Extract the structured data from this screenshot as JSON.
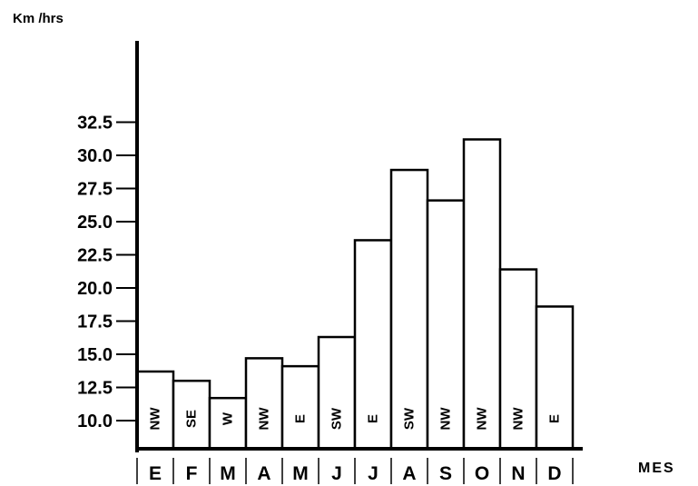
{
  "chart_data": {
    "type": "bar",
    "ylabel": "Km /hrs",
    "xlabel": "MES",
    "categories": [
      "E",
      "F",
      "M",
      "A",
      "M",
      "J",
      "J",
      "A",
      "S",
      "O",
      "N",
      "D"
    ],
    "values": [
      13.7,
      13.0,
      11.7,
      14.7,
      14.1,
      16.3,
      23.6,
      28.9,
      26.6,
      31.2,
      21.4,
      18.6
    ],
    "directions": [
      "NW",
      "SE",
      "W",
      "NW",
      "E",
      "SW",
      "E",
      "SW",
      "NW",
      "NW",
      "NW",
      "E"
    ],
    "yticks": [
      "10.0",
      "12.5",
      "15.0",
      "17.5",
      "20.0",
      "22.5",
      "25.0",
      "27.5",
      "30.0",
      "32.5"
    ],
    "ytick_values": [
      10,
      12.5,
      15,
      17.5,
      20,
      22.5,
      25,
      27.5,
      30,
      32.5
    ],
    "ylim": [
      8,
      32.5
    ],
    "grid": false,
    "bar_fill": "#ffffff",
    "line_color": "#000000"
  }
}
